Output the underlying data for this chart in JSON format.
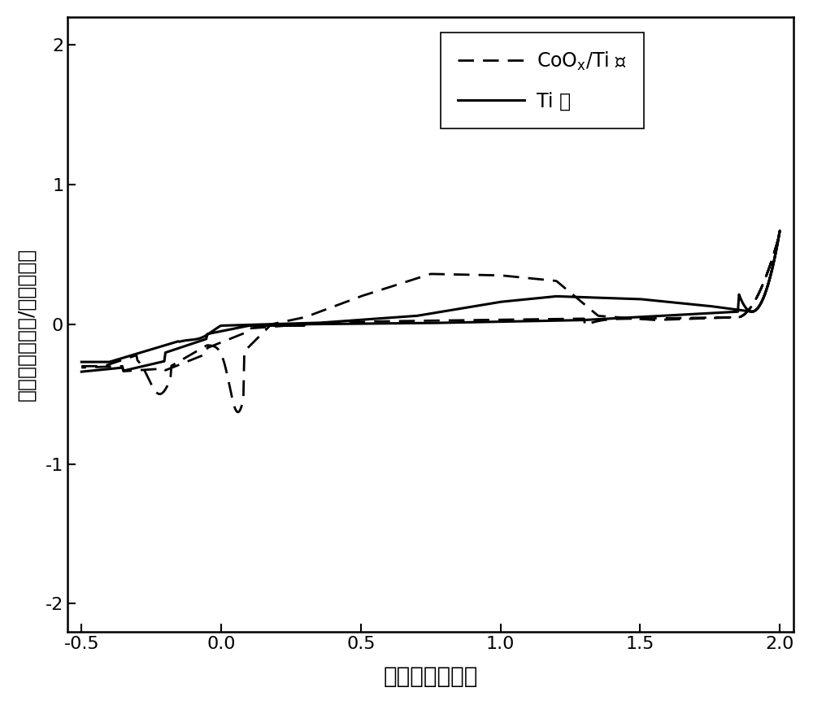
{
  "xlabel": "电极电位（伏）",
  "ylabel": "电流密度（毫安/平方厘米）",
  "xlim": [
    -0.55,
    2.05
  ],
  "ylim": [
    -2.2,
    2.2
  ],
  "xticks": [
    -0.5,
    0.0,
    0.5,
    1.0,
    1.5,
    2.0
  ],
  "yticks": [
    -2,
    -1,
    0,
    1,
    2
  ],
  "background_color": "#ffffff",
  "line_color": "#000000",
  "xlabel_fontsize": 20,
  "ylabel_fontsize": 18,
  "tick_fontsize": 16,
  "legend_fontsize": 17
}
